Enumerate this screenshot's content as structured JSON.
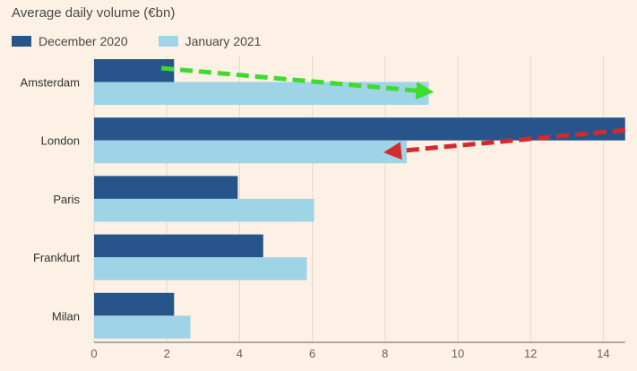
{
  "chart_data": {
    "type": "bar",
    "orientation": "horizontal",
    "title": "Average daily volume (€bn)",
    "categories": [
      "Amsterdam",
      "London",
      "Paris",
      "Frankfurt",
      "Milan"
    ],
    "series": [
      {
        "name": "December 2020",
        "color": "#27548a",
        "values": [
          2.2,
          14.6,
          3.95,
          4.65,
          2.2
        ]
      },
      {
        "name": "January 2021",
        "color": "#9fd3e6",
        "values": [
          9.2,
          8.6,
          6.05,
          5.85,
          2.65
        ]
      }
    ],
    "xticks": [
      0,
      2,
      4,
      6,
      8,
      10,
      12,
      14
    ],
    "xlim": [
      0,
      14.6
    ],
    "grid": true,
    "legend": "top-left",
    "annotations": [
      {
        "name": "green-arrow",
        "color": "#3ddc2e",
        "from": {
          "category": "Amsterdam",
          "x": 1.85
        },
        "to": {
          "category": "Amsterdam",
          "x": 9.1
        }
      },
      {
        "name": "red-arrow",
        "color": "#d42a2f",
        "from": {
          "category": "London",
          "x": 14.6
        },
        "to": {
          "category": "London",
          "x": 8.2
        }
      }
    ]
  }
}
